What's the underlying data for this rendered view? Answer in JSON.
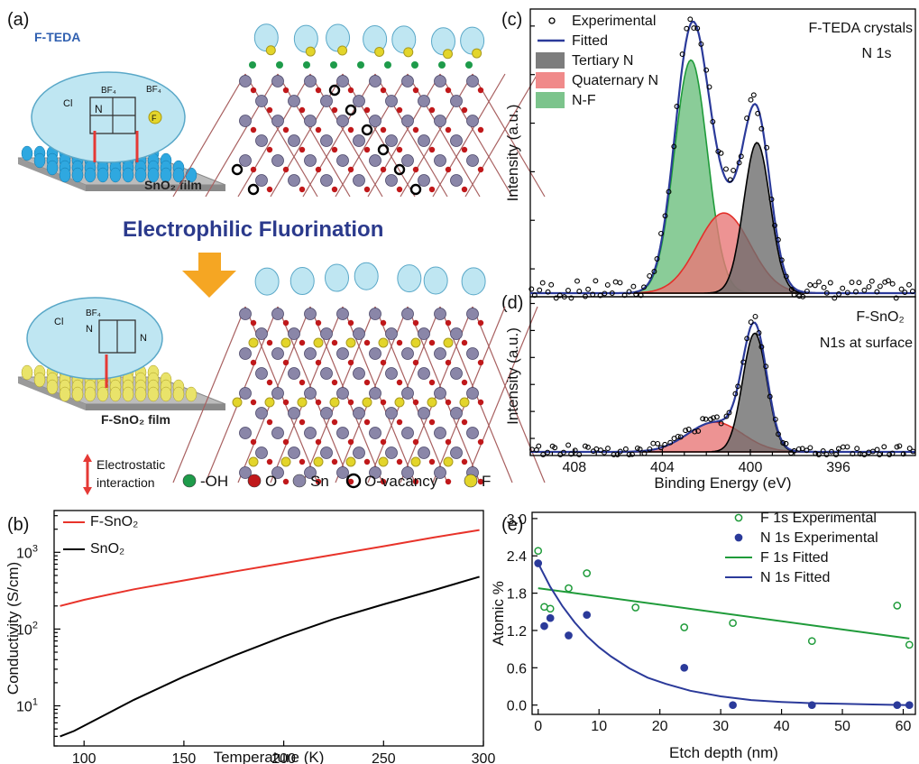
{
  "panel_labels": [
    "(a)",
    "(b)",
    "(c)",
    "(d)",
    "(e)"
  ],
  "schematic": {
    "reagent_label": "F-TEDA",
    "film_top": "SnO₂ film",
    "film_bottom": "F-SnO₂ film",
    "arrow_caption": "Electrophilic Fluorination",
    "interaction_line1": "Electrostatic",
    "interaction_line2": "interaction",
    "bf4_label": "BF₄",
    "n_label": "N",
    "cl_label": "Cl",
    "f_label": "F",
    "atom_legend": [
      {
        "label": "-OH",
        "color": "#1e9b4a",
        "icon": "filled-circle"
      },
      {
        "label": "O",
        "color": "#c0181a",
        "icon": "filled-circle"
      },
      {
        "label": "Sn",
        "color": "#8a86a8",
        "icon": "filled-circle"
      },
      {
        "label": "O-vacancy",
        "color": "#000000",
        "icon": "open-circle"
      },
      {
        "label": "F",
        "color": "#e3d52a",
        "icon": "filled-circle"
      }
    ],
    "colors": {
      "bubble": "#bfe6f2",
      "arrow": "#f5a623",
      "interaction_arrow": "#e53935",
      "substrate_top": "#2fa8e0",
      "substrate_bottom": "#e9e36a"
    }
  },
  "chart_data": [
    {
      "id": "b",
      "type": "line",
      "xlabel": "Temperature (K)",
      "ylabel": "Conductivity (S/cm)",
      "xlim": [
        85,
        300
      ],
      "ylim": [
        3,
        3500
      ],
      "yscale": "log",
      "xticks": [
        100,
        150,
        200,
        250,
        300
      ],
      "yticks": [
        {
          "v": 10,
          "base": "10",
          "exp": "1"
        },
        {
          "v": 100,
          "base": "10",
          "exp": "2"
        },
        {
          "v": 1000,
          "base": "10",
          "exp": "3"
        }
      ],
      "legend_placement": "top-left",
      "series": [
        {
          "name": "F-SnO₂",
          "color": "#e8332a",
          "x": [
            88,
            100,
            125,
            150,
            175,
            200,
            225,
            250,
            275,
            298
          ],
          "y": [
            200,
            240,
            330,
            430,
            560,
            720,
            930,
            1200,
            1560,
            1950
          ]
        },
        {
          "name": "SnO₂",
          "color": "#000000",
          "x": [
            88,
            95,
            100,
            110,
            125,
            150,
            175,
            200,
            225,
            250,
            275,
            298
          ],
          "y": [
            4,
            4.7,
            5.5,
            7.5,
            12,
            24,
            45,
            80,
            135,
            210,
            320,
            480
          ]
        }
      ]
    },
    {
      "id": "c",
      "type": "line",
      "title": "F-TEDA crystals",
      "subtitle": "N 1s",
      "ylabel": "Intensity (a.u.)",
      "xlim": [
        410,
        392.5
      ],
      "ylim": [
        0,
        1.17
      ],
      "legend_placement": "top-left",
      "legend": [
        {
          "label": "Experimental",
          "kind": "open-circle",
          "color": "#000000"
        },
        {
          "label": "Fitted",
          "kind": "line",
          "color": "#2b3a9a"
        },
        {
          "label": "Tertiary N",
          "kind": "fill",
          "color": "#7d7d7d"
        },
        {
          "label": "Quaternary N",
          "kind": "fill",
          "color": "#f08a8a"
        },
        {
          "label": "N-F",
          "kind": "fill",
          "color": "#7cc48c"
        }
      ],
      "peaks": [
        {
          "name": "N-F",
          "center": 402.7,
          "height": 0.96,
          "sigma": 0.75,
          "fill": "#6dbf7e",
          "stroke": "#1f9b3a"
        },
        {
          "name": "Quaternary N",
          "center": 401.2,
          "height": 0.33,
          "sigma": 1.2,
          "fill": "#e87878",
          "stroke": "#e3302a"
        },
        {
          "name": "Tertiary N",
          "center": 399.7,
          "height": 0.62,
          "sigma": 0.6,
          "fill": "#6e6e6e",
          "stroke": "#000000"
        }
      ],
      "scatter_seed": 7,
      "scatter_noise": 0.05
    },
    {
      "id": "d",
      "type": "line",
      "title": "F-SnO₂",
      "subtitle": "N1s at surface",
      "xlabel": "Binding Energy (eV)",
      "ylabel": "Intensity (a.u.)",
      "xlim": [
        410,
        392.5
      ],
      "ylim": [
        0,
        1.15
      ],
      "xticks": [
        408,
        404,
        400,
        396
      ],
      "peaks": [
        {
          "name": "Quaternary N",
          "center": 401.6,
          "height": 0.22,
          "sigma": 1.25,
          "fill": "#e87878",
          "stroke": "#e3302a"
        },
        {
          "name": "Tertiary N",
          "center": 399.8,
          "height": 0.88,
          "sigma": 0.55,
          "fill": "#6e6e6e",
          "stroke": "#000000"
        }
      ],
      "scatter_seed": 13,
      "scatter_noise": 0.05
    },
    {
      "id": "e",
      "type": "scatter",
      "xlabel": "Etch depth (nm)",
      "ylabel": "Atomic %",
      "xlim": [
        -1,
        62
      ],
      "ylim": [
        -0.15,
        3.1
      ],
      "xticks": [
        0,
        10,
        20,
        30,
        40,
        50,
        60
      ],
      "yticks": [
        0.0,
        0.6,
        1.2,
        1.8,
        2.4,
        3.0
      ],
      "legend_placement": "top-right",
      "series": [
        {
          "name": "F 1s Experimental",
          "kind": "open-circle",
          "color": "#1f9b3a",
          "x": [
            0,
            1,
            2,
            5,
            8,
            16,
            24,
            32,
            45,
            59,
            61
          ],
          "y": [
            2.48,
            1.58,
            1.55,
            1.88,
            2.12,
            1.57,
            1.25,
            1.32,
            1.03,
            1.6,
            0.97
          ]
        },
        {
          "name": "N 1s Experimental",
          "kind": "filled-circle",
          "color": "#2b3a9a",
          "x": [
            0,
            1,
            2,
            5,
            8,
            24,
            32,
            45,
            59,
            61
          ],
          "y": [
            2.28,
            1.27,
            1.4,
            1.12,
            1.45,
            0.6,
            0.0,
            0.0,
            0.0,
            0.0
          ]
        },
        {
          "name": "F 1s Fitted",
          "kind": "line",
          "color": "#1f9b3a",
          "x": [
            0,
            61
          ],
          "y": [
            1.88,
            1.07
          ]
        },
        {
          "name": "N 1s Fitted",
          "kind": "line",
          "color": "#2b3a9a",
          "x": [
            0,
            2,
            4,
            6,
            8,
            10,
            12,
            15,
            18,
            21,
            25,
            30,
            35,
            40,
            45,
            50,
            55,
            61
          ],
          "y": [
            2.28,
            1.9,
            1.59,
            1.33,
            1.11,
            0.93,
            0.78,
            0.59,
            0.44,
            0.34,
            0.23,
            0.14,
            0.08,
            0.05,
            0.03,
            0.02,
            0.01,
            0.0
          ]
        }
      ]
    }
  ]
}
